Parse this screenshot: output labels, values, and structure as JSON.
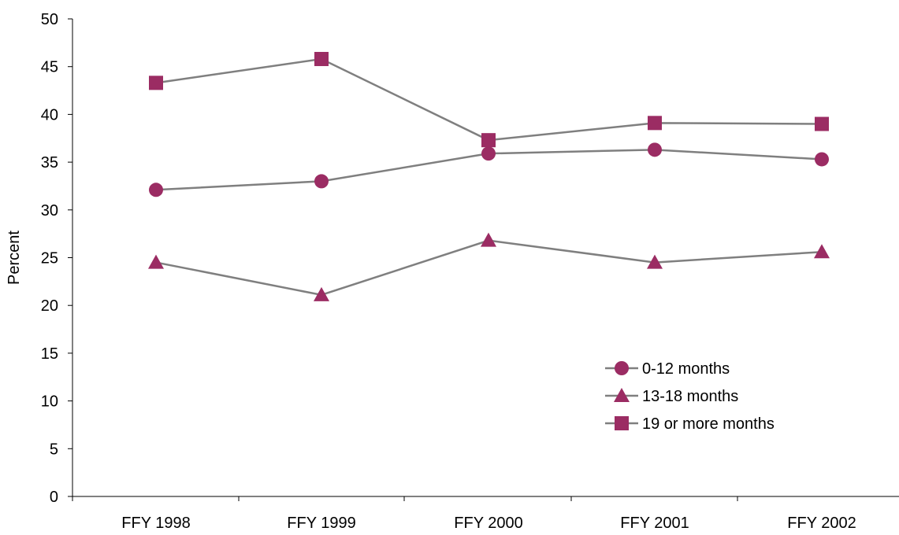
{
  "chart_data": {
    "type": "line",
    "categories": [
      "FFY 1998",
      "FFY 1999",
      "FFY 2000",
      "FFY 2001",
      "FFY 2002"
    ],
    "series": [
      {
        "name": "0-12 months",
        "marker": "circle",
        "values": [
          32.1,
          33.0,
          35.9,
          36.3,
          35.3
        ]
      },
      {
        "name": "13-18 months",
        "marker": "triangle",
        "values": [
          24.5,
          21.1,
          26.8,
          24.5,
          25.6
        ]
      },
      {
        "name": "19 or more months",
        "marker": "square",
        "values": [
          43.3,
          45.8,
          37.3,
          39.1,
          39.0
        ]
      }
    ],
    "xlabel": "",
    "ylabel": "Percent",
    "ylim": [
      0,
      50
    ],
    "yticks": [
      0,
      5,
      10,
      15,
      20,
      25,
      30,
      35,
      40,
      45,
      50
    ],
    "grid": false,
    "legend_position": "lower-right",
    "colors": {
      "line": "#7f7f7f",
      "marker": "#9b2c63",
      "axis": "#000000"
    }
  }
}
